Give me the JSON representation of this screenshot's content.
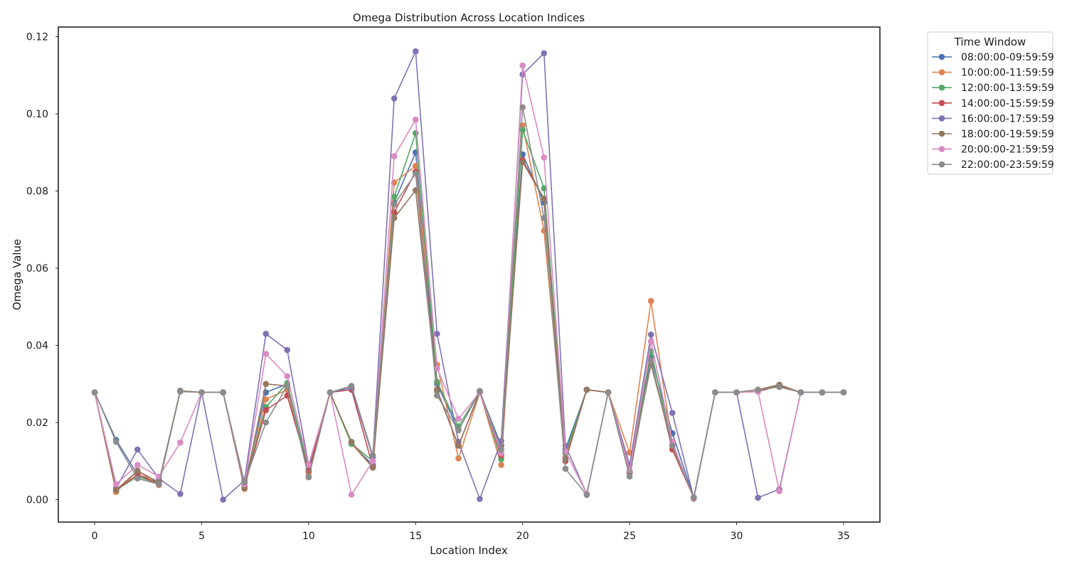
{
  "chart_data": {
    "type": "line",
    "title": "Omega Distribution Across Location Indices",
    "xlabel": "Location Index",
    "ylabel": "Omega Value",
    "xlim": [
      -1.7,
      36.7
    ],
    "ylim": [
      -0.0058,
      0.1225
    ],
    "xticks": [
      0,
      5,
      10,
      15,
      20,
      25,
      30,
      35
    ],
    "xtick_labels": [
      "0",
      "5",
      "10",
      "15",
      "20",
      "25",
      "30",
      "35"
    ],
    "yticks": [
      0.0,
      0.02,
      0.04,
      0.06,
      0.08,
      0.1,
      0.12
    ],
    "ytick_labels": [
      "0.00",
      "0.02",
      "0.04",
      "0.06",
      "0.08",
      "0.10",
      "0.12"
    ],
    "grid": false,
    "legend": {
      "title": "Time Window",
      "position": "outside-upper-right"
    },
    "x": [
      0,
      1,
      2,
      3,
      4,
      5,
      6,
      7,
      8,
      9,
      10,
      11,
      12,
      13,
      14,
      15,
      16,
      17,
      18,
      19,
      20,
      21,
      22,
      23,
      24,
      25,
      26,
      27,
      28,
      29,
      30,
      31,
      32,
      33,
      34,
      35
    ],
    "series": [
      {
        "name": "08:00:00-09:59:59",
        "color": "#4c72b0",
        "values": [
          0.0278,
          0.0155,
          0.0065,
          0.0045,
          0.0282,
          0.0278,
          0.0278,
          0.004,
          0.0278,
          0.03,
          0.008,
          0.0278,
          0.0145,
          0.009,
          0.077,
          0.09,
          0.03,
          0.018,
          0.028,
          0.014,
          0.0895,
          0.077,
          0.013,
          0.0285,
          0.0278,
          0.009,
          0.037,
          0.0172,
          0.0005,
          0.0278,
          0.0278,
          0.0285,
          0.0295,
          0.0278,
          0.0278,
          0.0278
        ]
      },
      {
        "name": "10:00:00-11:59:59",
        "color": "#dd8452",
        "values": [
          0.0278,
          0.002,
          0.0075,
          0.0038,
          0.0282,
          0.0278,
          0.0278,
          0.0028,
          0.026,
          0.0285,
          0.007,
          0.0278,
          0.0145,
          0.0083,
          0.0822,
          0.0865,
          0.035,
          0.0107,
          0.0278,
          0.009,
          0.097,
          0.0697,
          0.011,
          0.0285,
          0.0278,
          0.0122,
          0.0515,
          0.014,
          0.0005,
          0.0278,
          0.0278,
          0.0285,
          0.0298,
          0.0278,
          0.0278,
          0.0278
        ]
      },
      {
        "name": "12:00:00-13:59:59",
        "color": "#55a868",
        "values": [
          0.0278,
          0.0025,
          0.006,
          0.0042,
          0.0282,
          0.0278,
          0.0278,
          0.004,
          0.024,
          0.0302,
          0.0075,
          0.0278,
          0.0145,
          0.01,
          0.0785,
          0.095,
          0.0305,
          0.019,
          0.028,
          0.0105,
          0.0958,
          0.0807,
          0.012,
          0.0285,
          0.0278,
          0.007,
          0.0385,
          0.014,
          0.0005,
          0.0278,
          0.0278,
          0.0285,
          0.0295,
          0.0278,
          0.0278,
          0.0278
        ]
      },
      {
        "name": "14:00:00-15:59:59",
        "color": "#c44e52",
        "values": [
          0.0278,
          0.0025,
          0.0065,
          0.004,
          0.0282,
          0.0278,
          0.0278,
          0.0035,
          0.0232,
          0.027,
          0.0075,
          0.0278,
          0.0285,
          0.0085,
          0.0745,
          0.085,
          0.0285,
          0.014,
          0.028,
          0.0115,
          0.088,
          0.078,
          0.01,
          0.0285,
          0.0278,
          0.007,
          0.036,
          0.013,
          0.0005,
          0.0278,
          0.0278,
          0.028,
          0.0295,
          0.0278,
          0.0278,
          0.0278
        ]
      },
      {
        "name": "16:00:00-17:59:59",
        "color": "#8172b3",
        "values": [
          0.0278,
          0.003,
          0.013,
          0.0055,
          0.0015,
          0.0278,
          0.0,
          0.005,
          0.043,
          0.0388,
          0.009,
          0.0278,
          0.029,
          0.011,
          0.104,
          0.1162,
          0.043,
          0.015,
          0.0002,
          0.0152,
          0.1102,
          0.1157,
          0.014,
          0.0015,
          0.0278,
          0.009,
          0.0428,
          0.0225,
          0.0005,
          0.0278,
          0.0278,
          0.0005,
          0.0027,
          0.0278,
          0.0278,
          0.0278
        ]
      },
      {
        "name": "18:00:00-19:59:59",
        "color": "#937860",
        "values": [
          0.0278,
          0.0025,
          0.0075,
          0.0045,
          0.0282,
          0.0278,
          0.0278,
          0.003,
          0.03,
          0.0295,
          0.006,
          0.0278,
          0.015,
          0.0083,
          0.073,
          0.0802,
          0.0282,
          0.014,
          0.0278,
          0.012,
          0.0875,
          0.078,
          0.0105,
          0.0285,
          0.0278,
          0.0075,
          0.035,
          0.014,
          0.0005,
          0.0278,
          0.0278,
          0.0285,
          0.0298,
          0.0278,
          0.0278,
          0.0278
        ]
      },
      {
        "name": "20:00:00-21:59:59",
        "color": "#da8bc3",
        "values": [
          0.0278,
          0.004,
          0.009,
          0.006,
          0.0148,
          0.0278,
          0.0278,
          0.004,
          0.0378,
          0.032,
          0.009,
          0.0278,
          0.0013,
          0.01,
          0.089,
          0.0985,
          0.034,
          0.021,
          0.0278,
          0.012,
          0.1125,
          0.0887,
          0.0125,
          0.0015,
          0.0278,
          0.0075,
          0.041,
          0.015,
          0.0002,
          0.0278,
          0.0278,
          0.028,
          0.0022,
          0.0278,
          0.0278,
          0.0278
        ]
      },
      {
        "name": "22:00:00-23:59:59",
        "color": "#8c8c8c",
        "values": [
          0.0278,
          0.015,
          0.0055,
          0.004,
          0.028,
          0.0278,
          0.0278,
          0.0045,
          0.02,
          0.0295,
          0.0058,
          0.0278,
          0.0295,
          0.0115,
          0.0765,
          0.0845,
          0.027,
          0.018,
          0.0282,
          0.013,
          0.1017,
          0.073,
          0.008,
          0.0012,
          0.0278,
          0.006,
          0.036,
          0.014,
          0.0005,
          0.0278,
          0.0278,
          0.0285,
          0.0292,
          0.0278,
          0.0278,
          0.0278
        ]
      }
    ]
  }
}
